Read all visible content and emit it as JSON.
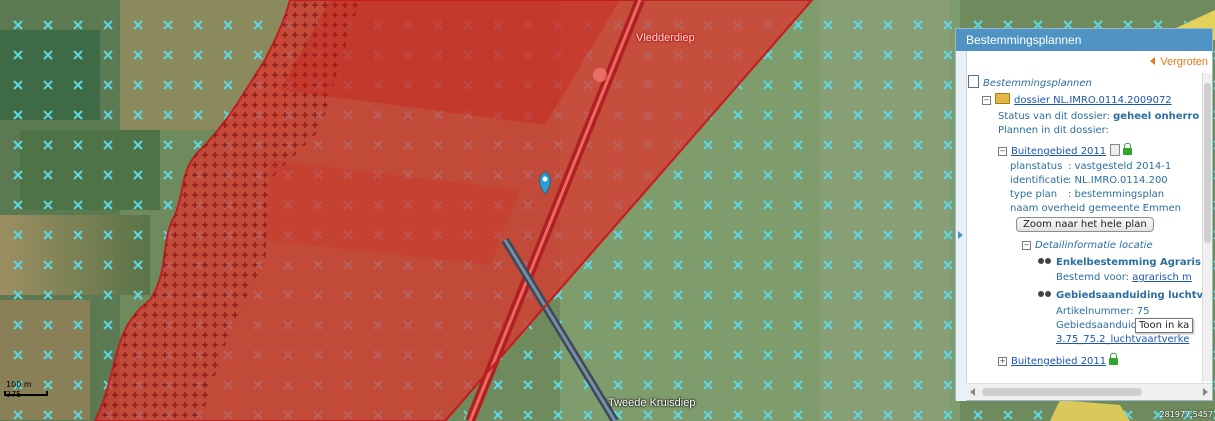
{
  "map": {
    "labels": {
      "top_road": "Vledderdiep",
      "bottom_road": "Tweede Kruisdiep"
    },
    "scale": {
      "line1": "100 m",
      "line2": "375"
    },
    "coords": "281977,5457",
    "colors": {
      "plan_fill": "#e0302a",
      "grass": "#7a9a6a",
      "marker": "#2a9fd6"
    },
    "icons": [
      "location-marker-icon"
    ]
  },
  "panel": {
    "title": "Bestemmingsplannen",
    "vergroten": "Vergroten",
    "root_label": "Bestemmingsplannen",
    "dossier": {
      "label": "dossier NL.IMRO.0114.2009072",
      "status_prefix": "Status van dit dossier: ",
      "status_value": "geheel onherro",
      "plans_label": "Plannen in dit dossier:"
    },
    "plan": {
      "name": "Buitengebied 2011",
      "fields": [
        {
          "key": "planstatus",
          "value": ": vastgesteld 2014-1"
        },
        {
          "key": "identificatie",
          "value": ": NL.IMRO.0114.200"
        },
        {
          "key": "type plan",
          "value": ": bestemmingsplan"
        },
        {
          "key": "naam overheid",
          "value": ": gemeente Emmen"
        }
      ],
      "zoom_button": "Zoom naar het hele plan",
      "detail_label": "Detailinformatie locatie",
      "enkel_title": "Enkelbestemming Agraris",
      "enkel_prefix": "Bestemd voor: ",
      "enkel_link": "agrarisch m",
      "gebied_title": "Gebiedsaanduiding luchtv",
      "artikel": "Artikelnummer: 75",
      "groep": "Gebiedsaanduiding groep:",
      "link": "3.75_75.2_luchtvaartverke"
    },
    "plan2": {
      "name": "Buitengebied 2011"
    },
    "tooltip": "Toon in ka"
  }
}
